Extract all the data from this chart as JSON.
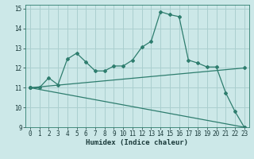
{
  "xlabel": "Humidex (Indice chaleur)",
  "bg_color": "#cce8e8",
  "line_color": "#2e7d6e",
  "grid_color": "#aacfcf",
  "xlim": [
    -0.5,
    23.5
  ],
  "ylim": [
    9,
    15.2
  ],
  "xticks": [
    0,
    1,
    2,
    3,
    4,
    5,
    6,
    7,
    8,
    9,
    10,
    11,
    12,
    13,
    14,
    15,
    16,
    17,
    18,
    19,
    20,
    21,
    22,
    23
  ],
  "yticks": [
    9,
    10,
    11,
    12,
    13,
    14,
    15
  ],
  "line1_x": [
    0,
    1,
    2,
    3,
    4,
    5,
    6,
    7,
    8,
    9,
    10,
    11,
    12,
    13,
    14,
    15,
    16,
    17,
    18,
    19,
    20,
    21,
    22,
    23
  ],
  "line1_y": [
    11.0,
    11.0,
    11.5,
    11.15,
    12.45,
    12.75,
    12.3,
    11.85,
    11.85,
    12.1,
    12.1,
    12.4,
    13.05,
    13.35,
    14.85,
    14.7,
    14.6,
    12.4,
    12.25,
    12.05,
    12.05,
    10.75,
    9.8,
    9.0
  ],
  "line2_x": [
    0,
    23
  ],
  "line2_y": [
    11.0,
    12.0
  ],
  "line3_x": [
    0,
    23
  ],
  "line3_y": [
    11.0,
    9.0
  ],
  "tick_fontsize": 5.5,
  "xlabel_fontsize": 6.5
}
